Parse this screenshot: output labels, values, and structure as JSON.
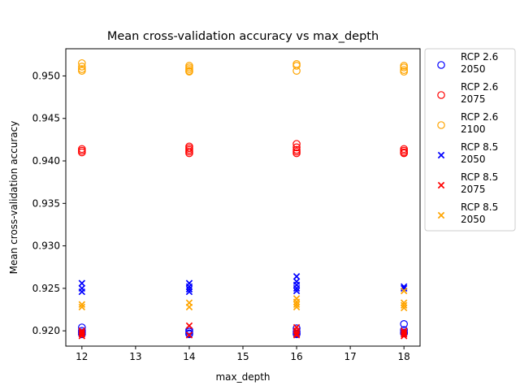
{
  "chart_data": {
    "type": "scatter",
    "title": "Mean cross-validation accuracy vs max_depth",
    "xlabel": "max_depth",
    "ylabel": "Mean cross-validation accuracy",
    "xlim": [
      11.7,
      18.3
    ],
    "ylim": [
      0.9182,
      0.9532
    ],
    "xticks": [
      12,
      13,
      14,
      15,
      16,
      17,
      18
    ],
    "yticks": [
      0.92,
      0.925,
      0.93,
      0.935,
      0.94,
      0.945,
      0.95
    ],
    "ytick_labels": [
      "0.920",
      "0.925",
      "0.930",
      "0.935",
      "0.940",
      "0.945",
      "0.950"
    ],
    "legend_position": "outside-right",
    "grid": false,
    "series": [
      {
        "name": "RCP 2.6\n2050",
        "marker": "o",
        "color": "#0000ff",
        "x": [
          12,
          12,
          12,
          12,
          14,
          14,
          14,
          14,
          16,
          16,
          16,
          16,
          18,
          18,
          18,
          18
        ],
        "y": [
          0.9204,
          0.92,
          0.9198,
          0.9196,
          0.9201,
          0.9199,
          0.9197,
          0.9196,
          0.9203,
          0.9199,
          0.9197,
          0.9196,
          0.9208,
          0.9201,
          0.9198,
          0.9197
        ]
      },
      {
        "name": "RCP 2.6\n2075",
        "marker": "o",
        "color": "#ff0000",
        "x": [
          12,
          12,
          12,
          14,
          14,
          14,
          14,
          14,
          16,
          16,
          16,
          16,
          16,
          18,
          18,
          18,
          18
        ],
        "y": [
          0.9414,
          0.9412,
          0.941,
          0.9417,
          0.9415,
          0.9413,
          0.9411,
          0.9409,
          0.942,
          0.9416,
          0.9413,
          0.9411,
          0.9409,
          0.9414,
          0.9412,
          0.941,
          0.9409
        ]
      },
      {
        "name": "RCP 2.6\n2100",
        "marker": "o",
        "color": "#ffa500",
        "x": [
          12,
          12,
          12,
          12,
          14,
          14,
          14,
          14,
          14,
          16,
          16,
          16,
          18,
          18,
          18,
          18
        ],
        "y": [
          0.9515,
          0.9511,
          0.9508,
          0.9506,
          0.9512,
          0.951,
          0.9508,
          0.9506,
          0.9505,
          0.9514,
          0.9512,
          0.9506,
          0.9512,
          0.951,
          0.9507,
          0.9505
        ]
      },
      {
        "name": "RCP 8.5\n2050",
        "marker": "x",
        "color": "#0000ff",
        "x": [
          12,
          12,
          12,
          14,
          14,
          14,
          14,
          16,
          16,
          16,
          16,
          16,
          16,
          18,
          18
        ],
        "y": [
          0.9256,
          0.925,
          0.9246,
          0.9256,
          0.9252,
          0.9249,
          0.9246,
          0.9264,
          0.9258,
          0.9254,
          0.925,
          0.9247,
          0.9196,
          0.9252,
          0.925
        ]
      },
      {
        "name": "RCP 8.5\n2075",
        "marker": "x",
        "color": "#ff0000",
        "x": [
          12,
          12,
          12,
          12,
          14,
          14,
          16,
          16,
          16,
          16,
          18,
          18,
          18,
          18
        ],
        "y": [
          0.92,
          0.9198,
          0.9196,
          0.9194,
          0.9206,
          0.9195,
          0.9204,
          0.92,
          0.9197,
          0.9195,
          0.92,
          0.9198,
          0.9196,
          0.9194
        ]
      },
      {
        "name": "RCP 8.5\n2050",
        "marker": "x",
        "color": "#ffa500",
        "x": [
          12,
          12,
          14,
          14,
          16,
          16,
          16,
          16,
          18,
          18,
          18,
          18
        ],
        "y": [
          0.9231,
          0.9228,
          0.9233,
          0.9228,
          0.9238,
          0.9234,
          0.9231,
          0.9228,
          0.9247,
          0.9233,
          0.923,
          0.9227
        ]
      }
    ]
  }
}
